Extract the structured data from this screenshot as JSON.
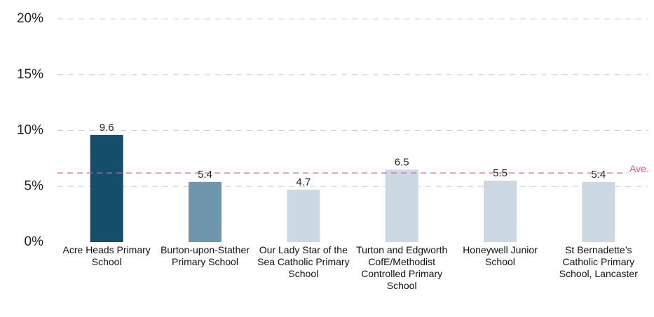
{
  "chart_data": {
    "type": "bar",
    "categories": [
      "Acre Heads Primary School",
      "Burton-upon-Stather Primary School",
      "Our Lady Star of the Sea Catholic Primary School",
      "Turton and Edgworth CofE/Methodist Controlled Primary School",
      "Honeywell Junior School",
      "St Bernadette’s Catholic Primary School, Lancaster"
    ],
    "values": [
      9.6,
      5.4,
      4.7,
      6.5,
      5.5,
      5.4
    ],
    "colors": [
      "#154e6a",
      "#7096ae",
      "#cdd9e2",
      "#cdd9e2",
      "#cdd9e2",
      "#cdd9e2"
    ],
    "ylim": [
      0,
      20
    ],
    "yticks": [
      {
        "value": 0,
        "label": "0%"
      },
      {
        "value": 5,
        "label": "5%"
      },
      {
        "value": 10,
        "label": "10%"
      },
      {
        "value": 15,
        "label": "15%"
      },
      {
        "value": 20,
        "label": "20%"
      }
    ],
    "grid": true,
    "average": {
      "value": 6.2,
      "label": "Ave.",
      "color": "#e8559a"
    }
  }
}
